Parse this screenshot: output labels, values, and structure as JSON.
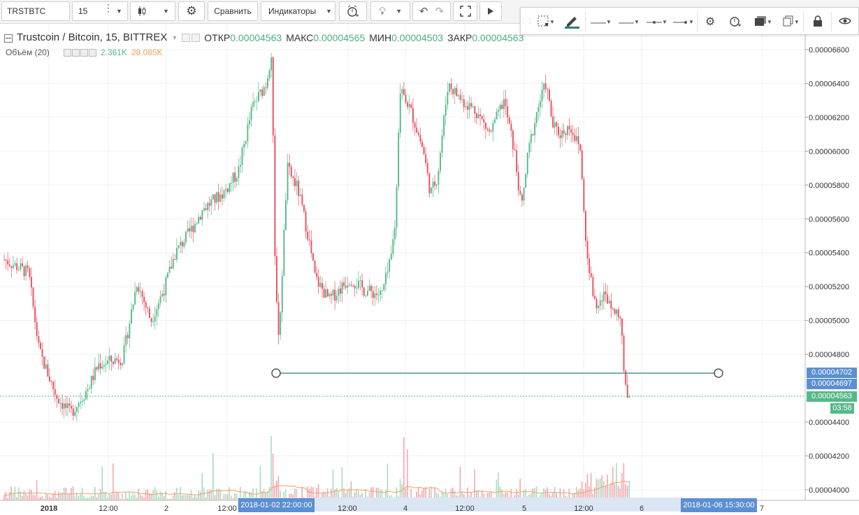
{
  "toolbar": {
    "symbol": "TRSTBTC",
    "interval": "15",
    "compare_label": "Сравнить",
    "indicators_label": "Индикаторы"
  },
  "legend": {
    "title": "Trustcoin / Bitcoin, 15, BITTREX",
    "open_label": "ОТКР",
    "open_value": "0.00004563",
    "high_label": "МАКС",
    "high_value": "0.00004565",
    "low_label": "МИН",
    "low_value": "0.00004503",
    "close_label": "ЗАКР",
    "close_value": "0.00004563"
  },
  "volume": {
    "label": "Объём (20)",
    "value1": "2.361K",
    "value2": "28.085K"
  },
  "price_axis": {
    "ticks": [
      "0.00006600",
      "0.00006400",
      "0.00006200",
      "0.00006000",
      "0.00005800",
      "0.00005600",
      "0.00005400",
      "0.00005200",
      "0.00005000",
      "0.00004800",
      "0.00004400",
      "0.00004200",
      "0.00004000"
    ],
    "tick_values": [
      6.6e-05,
      6.4e-05,
      6.2e-05,
      6e-05,
      5.8e-05,
      5.6e-05,
      5.4e-05,
      5.2e-05,
      5e-05,
      4.8e-05,
      4.4e-05,
      4.2e-05,
      4e-05
    ],
    "line_label_1": "0.00004702",
    "line_label_2": "0.00004697",
    "last_price": "0.00004563",
    "countdown": "03:58"
  },
  "time_axis": {
    "ticks": [
      "2018",
      "12:00",
      "2",
      "12:00",
      "12:00",
      "4",
      "12:00",
      "5",
      "12:00",
      "6",
      "7"
    ],
    "start_label": "2018-01-02 22:00:00",
    "end_label": "2018-01-06 15:30:00"
  },
  "colors": {
    "up": "#53b987",
    "down": "#eb4d5c",
    "line": "#2f7d7a",
    "accent": "#5b8fd1"
  }
}
